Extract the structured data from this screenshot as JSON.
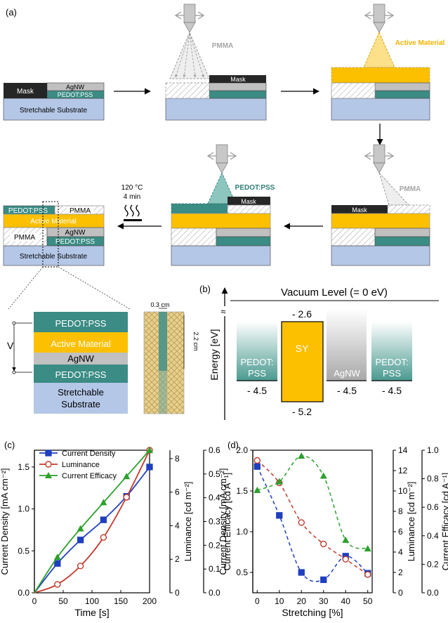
{
  "colors": {
    "substrate": "#b4c7e7",
    "pedot": "#3a8c84",
    "agnw": "#c0c0c0",
    "mask": "#262626",
    "active": "#fcc000",
    "pmma_text": "#a6a6a6",
    "blue": "#1f3fbf",
    "red": "#c0392b",
    "green": "#2ca02c"
  },
  "panel_labels": {
    "a": "(a)",
    "b": "(b)",
    "c": "(c)",
    "d": "(d)"
  },
  "stack1": {
    "mask": "Mask",
    "agnw": "AgNW",
    "pedot": "PEDOT:PSS",
    "substrate": "Stretchable Substrate"
  },
  "spray_labels": {
    "pmma": "PMMA",
    "active": "Active Material",
    "pmma2": "PMMA",
    "pedot": "PEDOT:PSS"
  },
  "mask_label": "Mask",
  "anneal": {
    "temp": "120 °C",
    "time": "4 min"
  },
  "final_stack": {
    "pedot": "PEDOT:PSS",
    "pmma_top": "PMMA",
    "active": "Active Material",
    "agnw": "AgNW",
    "pmma_bottom": "PMMA",
    "pedot_bottom": "PEDOT:PSS",
    "substrate": "Stretchable Substrate"
  },
  "device": {
    "voltage": "V",
    "layers": [
      "PEDOT:PSS",
      "Active Material",
      "AgNW",
      "PEDOT:PSS",
      "Stretchable Substrate"
    ],
    "width_dim": "0.3 cm",
    "height_dim": "2.2 cm"
  },
  "energy": {
    "vacuum": "Vacuum Level (= 0 eV)",
    "ylabel": "Energy [eV]",
    "break": "≈",
    "pedot_left": "PEDOT:PSS",
    "pedot_left_value": "- 4.5",
    "sy": "SY",
    "sy_lumo": "- 2.6",
    "sy_homo": "- 5.2",
    "agnw": "AgNW",
    "agnw_value": "- 4.5",
    "pedot_right": "PEDOT:PSS",
    "pedot_right_value": "- 4.5"
  },
  "chart_data": [
    {
      "type": "line",
      "panel": "c",
      "xlabel": "Time [s]",
      "ylabel": "Current Density [mA cm⁻²]",
      "y2label": "Luminance [cd m⁻²]",
      "y3label": "Current Efficacy [cd A⁻¹]",
      "xlim": [
        0,
        200
      ],
      "ylim": [
        0,
        1.7
      ],
      "y2lim": [
        0,
        8.5
      ],
      "y3lim": [
        0,
        0.6
      ],
      "xticks": [
        "0",
        "50",
        "100",
        "150",
        "200"
      ],
      "yticks": [
        "0.0",
        "0.5",
        "1.0",
        "1.5"
      ],
      "y2ticks": [
        "0",
        "2",
        "4",
        "6",
        "8"
      ],
      "y3ticks": [
        "0.0",
        "0.1",
        "0.2",
        "0.3",
        "0.4",
        "0.5",
        "0.6"
      ],
      "series": [
        {
          "name": "Current Density",
          "axis": "y",
          "marker": "square",
          "x": [
            40,
            80,
            120,
            160,
            200
          ],
          "values": [
            0.35,
            0.63,
            0.87,
            1.15,
            1.5
          ]
        },
        {
          "name": "Luminance",
          "axis": "y2",
          "marker": "circle",
          "x": [
            0,
            40,
            80,
            120,
            160,
            200
          ],
          "values": [
            0,
            0.5,
            1.6,
            3.3,
            5.7,
            8.5
          ]
        },
        {
          "name": "Current Efficacy",
          "axis": "y3",
          "marker": "triangle",
          "x": [
            40,
            80,
            120,
            160,
            200
          ],
          "values": [
            0.15,
            0.27,
            0.38,
            0.49,
            0.6
          ]
        }
      ]
    },
    {
      "type": "scatter",
      "panel": "d",
      "xlabel": "Stretching [%]",
      "ylabel": "Current Density [mA cm⁻²]",
      "y2label": "Luminance [cd m⁻²]",
      "y3label": "Current Efficacy [cd A⁻¹]",
      "xlim": [
        -2,
        52
      ],
      "ylim": [
        0.25,
        2.0
      ],
      "y2lim": [
        0,
        14
      ],
      "y3lim": [
        0,
        1.0
      ],
      "xticks": [
        "0",
        "10",
        "20",
        "30",
        "40",
        "50"
      ],
      "yticks": [
        "0.5",
        "1.0",
        "1.5",
        "2.0"
      ],
      "y2ticks": [
        "0",
        "2",
        "4",
        "6",
        "8",
        "10",
        "12",
        "14"
      ],
      "y3ticks": [
        "0.0",
        "0.2",
        "0.4",
        "0.6",
        "0.8",
        "1.0"
      ],
      "series": [
        {
          "name": "Current Density",
          "axis": "y",
          "marker": "square",
          "x": [
            0,
            10,
            20,
            30,
            40,
            50
          ],
          "values": [
            1.8,
            1.2,
            0.5,
            0.41,
            0.7,
            0.49
          ]
        },
        {
          "name": "Luminance",
          "axis": "y2",
          "marker": "circle",
          "x": [
            0,
            10,
            20,
            30,
            40,
            50
          ],
          "values": [
            13.0,
            10.8,
            6.9,
            4.8,
            3.3,
            1.8
          ]
        },
        {
          "name": "Current Efficacy",
          "axis": "y3",
          "marker": "triangle",
          "x": [
            0,
            10,
            20,
            30,
            40,
            50
          ],
          "values": [
            0.72,
            0.78,
            0.96,
            0.82,
            0.37,
            0.31
          ]
        }
      ]
    }
  ]
}
